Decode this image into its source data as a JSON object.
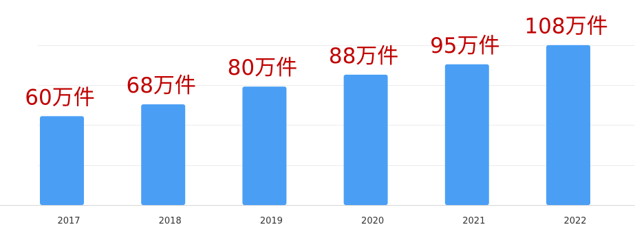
{
  "chart_data": {
    "type": "bar",
    "categories": [
      "2017",
      "2018",
      "2019",
      "2020",
      "2021",
      "2022"
    ],
    "values": [
      60,
      68,
      80,
      88,
      95,
      108
    ],
    "data_labels": [
      "60万件",
      "68万件",
      "80万件",
      "88万件",
      "95万件",
      "108万件"
    ],
    "title": "",
    "xlabel": "",
    "ylabel": "",
    "ylim": [
      0,
      120
    ],
    "grid": true,
    "legend": "none",
    "bar_color": "#4a9ff5",
    "label_color": "#c00000"
  }
}
